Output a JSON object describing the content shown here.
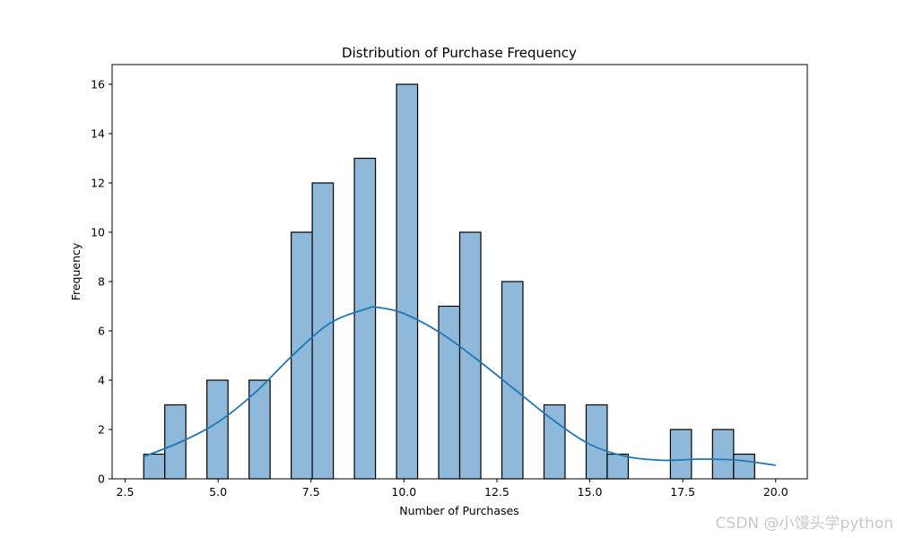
{
  "chart_data": {
    "type": "bar",
    "subtype": "histogram",
    "title": "Distribution of Purchase Frequency",
    "xlabel": "Number of Purchases",
    "ylabel": "Frequency",
    "xlim": [
      2.15,
      20.85
    ],
    "ylim": [
      0,
      16.8
    ],
    "xticks": [
      "2.5",
      "5.0",
      "7.5",
      "10.0",
      "12.5",
      "15.0",
      "17.5",
      "20.0"
    ],
    "yticks": [
      "0",
      "2",
      "4",
      "6",
      "8",
      "10",
      "12",
      "14",
      "16"
    ],
    "bin_start": 3.0,
    "bin_width": 0.5667,
    "counts": [
      1,
      3,
      0,
      4,
      0,
      4,
      0,
      10,
      12,
      0,
      13,
      0,
      16,
      0,
      7,
      10,
      0,
      8,
      0,
      3,
      0,
      3,
      1,
      0,
      0,
      2,
      0,
      2,
      1,
      0
    ],
    "kde": {
      "x": [
        3.0,
        4.0,
        5.0,
        6.0,
        7.0,
        8.0,
        9.0,
        9.3,
        10.0,
        11.0,
        12.0,
        13.0,
        14.0,
        15.0,
        16.0,
        17.0,
        18.0,
        19.0,
        20.0
      ],
      "y": [
        0.9,
        1.5,
        2.3,
        3.5,
        5.0,
        6.3,
        6.9,
        6.95,
        6.7,
        5.9,
        4.8,
        3.6,
        2.4,
        1.4,
        0.9,
        0.75,
        0.8,
        0.75,
        0.55
      ]
    },
    "bar_color": "#8fb9da",
    "edge_color": "#000000",
    "line_color": "#1f77b4",
    "grid": false,
    "legend": "none"
  },
  "watermark": "CSDN @小馒头学python"
}
